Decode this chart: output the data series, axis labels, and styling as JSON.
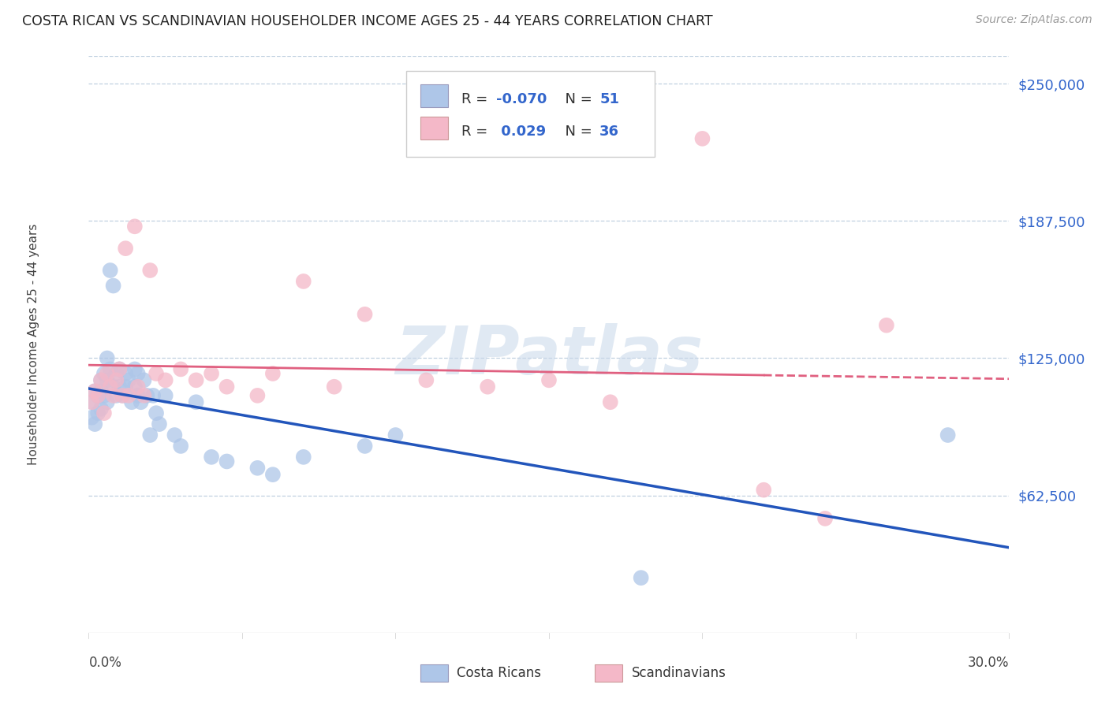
{
  "title": "COSTA RICAN VS SCANDINAVIAN HOUSEHOLDER INCOME AGES 25 - 44 YEARS CORRELATION CHART",
  "source": "Source: ZipAtlas.com",
  "ylabel": "Householder Income Ages 25 - 44 years",
  "ytick_labels": [
    "$62,500",
    "$125,000",
    "$187,500",
    "$250,000"
  ],
  "ytick_values": [
    62500,
    125000,
    187500,
    250000
  ],
  "ymin": 0,
  "ymax": 262500,
  "xmin": 0.0,
  "xmax": 0.3,
  "watermark": "ZIPatlas",
  "costa_rican_color": "#aec6e8",
  "scandinavian_color": "#f4b8c8",
  "trend_blue_color": "#2255bb",
  "trend_pink_color": "#e06080",
  "grid_color": "#c0d0e0",
  "costa_ricans_x": [
    0.001,
    0.001,
    0.002,
    0.002,
    0.003,
    0.003,
    0.004,
    0.004,
    0.004,
    0.005,
    0.005,
    0.006,
    0.006,
    0.006,
    0.007,
    0.007,
    0.008,
    0.008,
    0.009,
    0.009,
    0.01,
    0.01,
    0.011,
    0.012,
    0.012,
    0.013,
    0.014,
    0.015,
    0.015,
    0.016,
    0.016,
    0.017,
    0.018,
    0.019,
    0.02,
    0.021,
    0.022,
    0.023,
    0.025,
    0.028,
    0.03,
    0.035,
    0.04,
    0.045,
    0.055,
    0.06,
    0.07,
    0.09,
    0.1,
    0.18,
    0.28
  ],
  "costa_ricans_y": [
    105000,
    98000,
    110000,
    95000,
    108000,
    100000,
    115000,
    110000,
    102000,
    118000,
    108000,
    125000,
    115000,
    105000,
    165000,
    120000,
    158000,
    112000,
    118000,
    108000,
    120000,
    112000,
    108000,
    118000,
    112000,
    115000,
    105000,
    120000,
    112000,
    118000,
    108000,
    105000,
    115000,
    108000,
    90000,
    108000,
    100000,
    95000,
    108000,
    90000,
    85000,
    105000,
    80000,
    78000,
    75000,
    72000,
    80000,
    85000,
    90000,
    25000,
    90000
  ],
  "scandinavians_x": [
    0.001,
    0.002,
    0.003,
    0.004,
    0.005,
    0.006,
    0.007,
    0.008,
    0.009,
    0.01,
    0.011,
    0.012,
    0.013,
    0.015,
    0.016,
    0.018,
    0.02,
    0.022,
    0.025,
    0.03,
    0.035,
    0.04,
    0.045,
    0.055,
    0.06,
    0.07,
    0.08,
    0.09,
    0.11,
    0.13,
    0.15,
    0.17,
    0.2,
    0.22,
    0.24,
    0.26
  ],
  "scandinavians_y": [
    105000,
    110000,
    108000,
    115000,
    100000,
    118000,
    112000,
    108000,
    115000,
    120000,
    108000,
    175000,
    108000,
    185000,
    112000,
    108000,
    165000,
    118000,
    115000,
    120000,
    115000,
    118000,
    112000,
    108000,
    118000,
    160000,
    112000,
    145000,
    115000,
    112000,
    115000,
    105000,
    225000,
    65000,
    52000,
    140000
  ]
}
